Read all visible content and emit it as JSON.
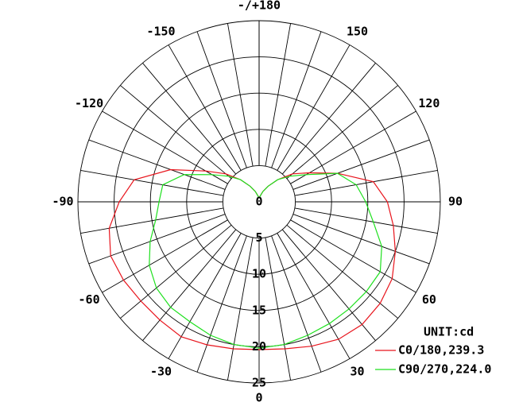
{
  "chart_data": {
    "type": "polar",
    "unit_label": "UNIT:cd",
    "x": [
      -180,
      -170,
      -160,
      -150,
      -140,
      -130,
      -120,
      -110,
      -100,
      -90,
      -80,
      -70,
      -60,
      -50,
      -40,
      -30,
      -20,
      -10,
      0,
      10,
      20,
      30,
      40,
      50,
      60,
      70,
      80,
      90,
      100,
      110,
      120,
      130,
      140,
      150,
      160,
      170,
      180
    ],
    "series": [
      {
        "name": "C0/180,239.3",
        "color": "#e8141c",
        "values": [
          0.5,
          0.8,
          1.5,
          2.5,
          4,
          6,
          8.5,
          13,
          17.5,
          19.3,
          21,
          21.8,
          21.6,
          21.3,
          21.3,
          21.5,
          21,
          20.6,
          20.4,
          20.6,
          21.2,
          21.9,
          22.1,
          21.8,
          21.2,
          20,
          18.8,
          17.7,
          16,
          11.5,
          8,
          6,
          4,
          2.5,
          1.5,
          0.8,
          0.5
        ]
      },
      {
        "name": "C90/270,224.0",
        "color": "#1ee01e",
        "values": [
          0.5,
          0.8,
          1.5,
          2.5,
          4,
          5.5,
          7.5,
          11,
          13.5,
          13.8,
          14.5,
          16,
          17.5,
          18.5,
          19,
          19.1,
          19.6,
          20,
          20.2,
          20,
          19.6,
          19.4,
          19.3,
          19.3,
          19.3,
          18,
          16,
          14.7,
          13.6,
          11.5,
          7.5,
          5.5,
          4,
          2.5,
          1.5,
          0.8,
          0.5
        ]
      }
    ],
    "xticks": [
      {
        "value": 180,
        "label": "-/+180"
      },
      150,
      120,
      90,
      60,
      30,
      0,
      -30,
      -60,
      -90,
      -120,
      -150
    ],
    "ylim": [
      0,
      25
    ],
    "yticks": [
      0,
      5,
      10,
      15,
      20,
      25
    ]
  }
}
